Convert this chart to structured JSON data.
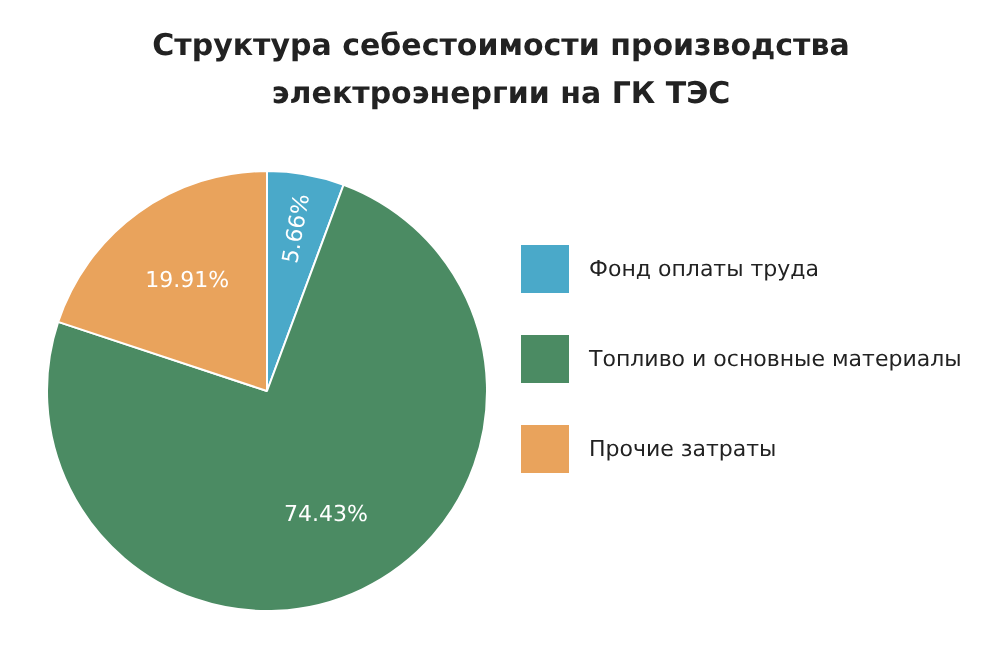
{
  "chart_data": {
    "type": "pie",
    "title": "Структура себестоимости производства\nэлектроэнергии на ГК ТЭС",
    "categories": [
      "Фонд оплаты труда",
      "Топливо и основные материалы",
      "Прочие затраты"
    ],
    "values": [
      5.66,
      74.43,
      19.91
    ],
    "colors": [
      "#4aa9c9",
      "#4b8b63",
      "#e9a35c"
    ],
    "value_labels": [
      "5.66%",
      "74.43%",
      "19.91%"
    ],
    "legend": "right"
  }
}
